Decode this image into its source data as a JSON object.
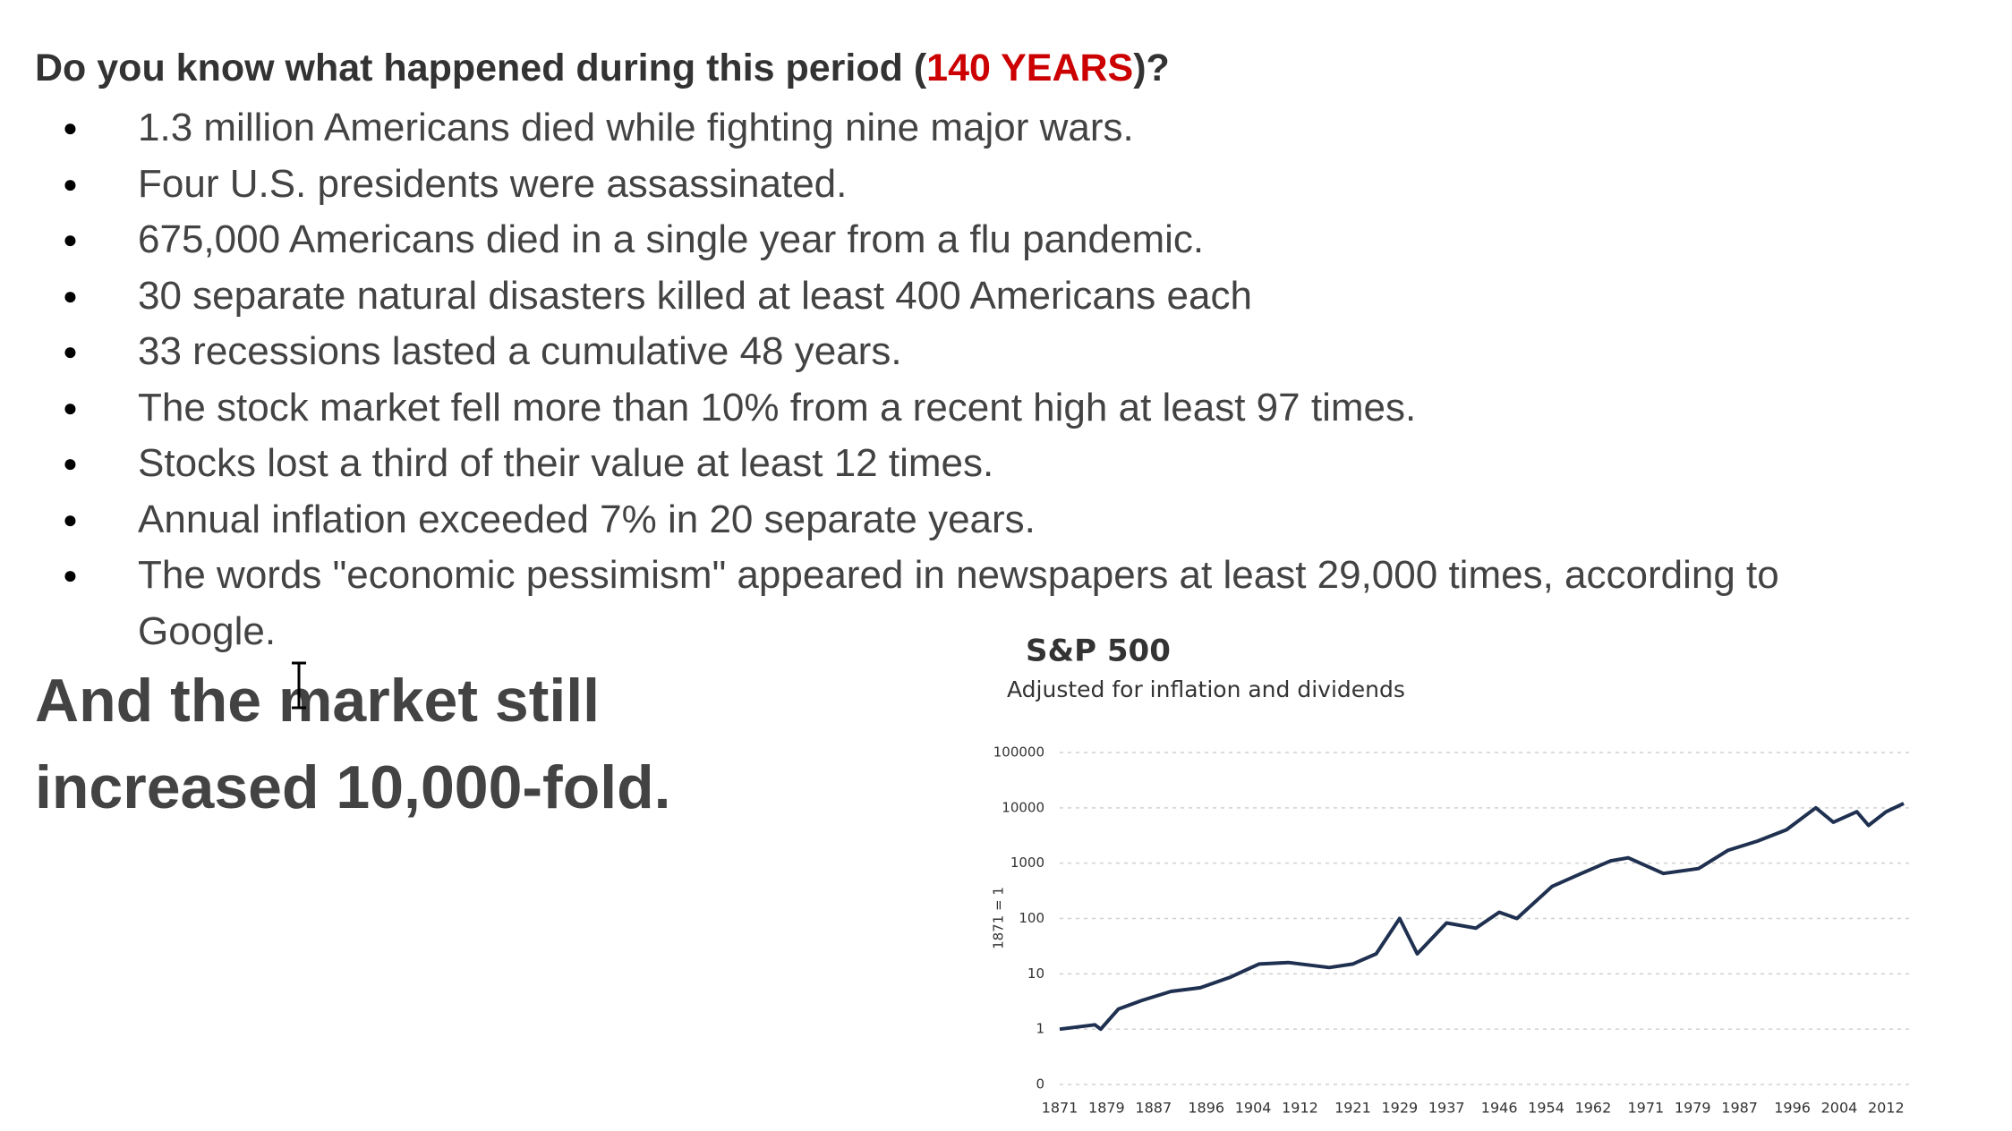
{
  "heading": {
    "before": "Do you know what happened during this period (",
    "highlight": "140 YEARS",
    "after": ")?"
  },
  "bullets": [
    "1.3 million Americans died while fighting nine major wars.",
    "Four U.S. presidents were assassinated.",
    "675,000 Americans died in a single year from a flu pandemic.",
    "30 separate natural disasters killed at least 400 Americans each",
    "33 recessions lasted a cumulative 48 years.",
    "The stock market fell more than 10% from a recent high at least 97 times.",
    "Stocks lost a third of their value at least 12 times.",
    "Annual inflation exceeded 7% in 20 separate years.",
    "The words \"economic pessimism\" appeared in newspapers at least 29,000 times, according to Google."
  ],
  "conclusion": "And the market still increased 10,000-fold.",
  "chart_data": {
    "type": "line",
    "title": "S&P 500",
    "subtitle": "Adjusted for inflation and dividends",
    "y_label": "1871 = 1",
    "log_scale": true,
    "grid": true,
    "x": [
      1871,
      1877,
      1878,
      1881,
      1885,
      1890,
      1895,
      1900,
      1905,
      1910,
      1917,
      1921,
      1925,
      1929,
      1932,
      1937,
      1942,
      1946,
      1949,
      1955,
      1960,
      1965,
      1968,
      1974,
      1980,
      1985,
      1990,
      1995,
      2000,
      2003,
      2007,
      2009,
      2012,
      2015
    ],
    "series": [
      {
        "name": "S&P 500",
        "color": "#1f3050",
        "values": [
          1,
          1.2,
          1,
          2.3,
          3.3,
          4.8,
          5.6,
          8.6,
          15,
          16,
          13,
          15,
          23,
          100,
          23,
          83,
          67,
          130,
          100,
          380,
          650,
          1100,
          1250,
          650,
          800,
          1700,
          2500,
          4000,
          10000,
          5500,
          8500,
          4800,
          8500,
          12000
        ]
      }
    ],
    "xlim": [
      1871,
      2015
    ],
    "xticks": [
      1871,
      1879,
      1887,
      1896,
      1904,
      1912,
      1921,
      1929,
      1937,
      1946,
      1954,
      1962,
      1971,
      1979,
      1987,
      1996,
      2004,
      2012
    ],
    "ylim": [
      0.1,
      100000
    ],
    "yticks": [
      {
        "value": 0.1,
        "label": "0"
      },
      1,
      10,
      100,
      1000,
      10000,
      100000
    ]
  }
}
